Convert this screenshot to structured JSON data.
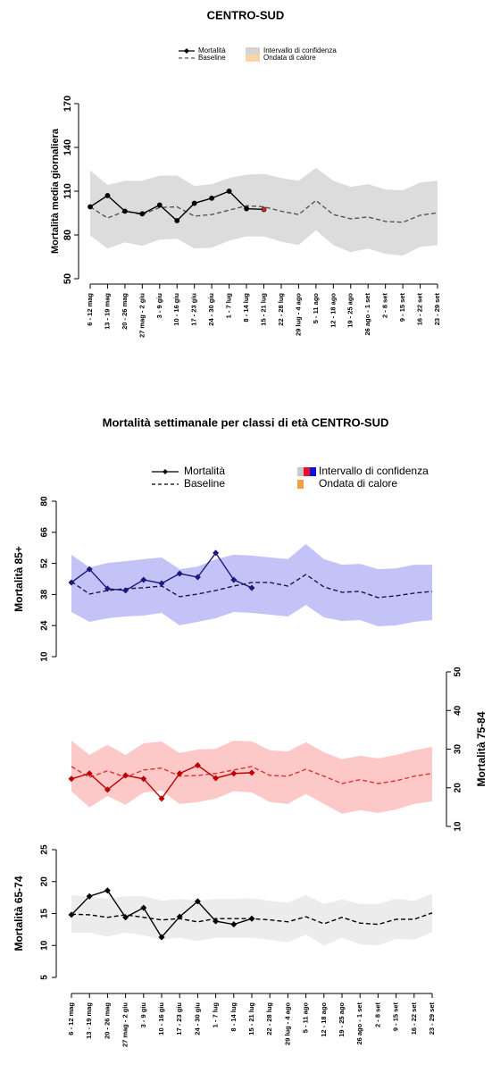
{
  "chart_data": [
    {
      "type": "line",
      "title": "CENTRO-SUD",
      "legend": [
        {
          "label": "Mortalità",
          "style": "solid",
          "colors": [
            "#000000"
          ]
        },
        {
          "label": "Baseline",
          "style": "dashed",
          "colors": [
            "#555555"
          ]
        },
        {
          "label": "Intervallo di confidenza",
          "style": "swatch",
          "colors": [
            "#d4d4d4"
          ]
        },
        {
          "label": "Ondata di calore",
          "style": "swatch",
          "colors": [
            "#fdd3a8"
          ]
        }
      ],
      "categories": [
        "6 - 12 mag",
        "13 - 19 mag",
        "20 - 26 mag",
        "27 mag - 2 giu",
        "3 - 9 giu",
        "10 - 16 giu",
        "17 - 23 giu",
        "24 - 30 giu",
        "1 - 7 lug",
        "8 - 14 lug",
        "15 - 21 lug",
        "22 - 28 lug",
        "29 lug - 4 ago",
        "5 - 11 ago",
        "12 - 18 ago",
        "19 - 25 ago",
        "26 ago - 1 set",
        "2 - 8 set",
        "9 - 15 set",
        "16 - 22 set",
        "23 - 29 set"
      ],
      "panels": [
        {
          "ylabel": "Mortalità media giornaliera",
          "ylim": [
            50,
            170
          ],
          "yticks": [
            50,
            80,
            110,
            140,
            170
          ],
          "line_color": "#000000",
          "baseline_color": "#555555",
          "band_color": "#dcdcdc",
          "marker": "circle",
          "marker_colors": [
            "#000000",
            "#000000",
            "#000000",
            "#000000",
            "#000000",
            "#000000",
            "#000000",
            "#000000",
            "#000000",
            "#000000",
            "#d62728"
          ],
          "values": [
            99.3,
            107,
            96.3,
            94.5,
            100.5,
            89.8,
            101.7,
            105.2,
            110,
            98,
            97.5,
            null,
            null,
            null,
            null,
            null,
            null,
            null,
            null,
            null,
            null
          ],
          "baseline": [
            99.3,
            91.6,
            96.3,
            94,
            98.8,
            99.3,
            92.9,
            94,
            97,
            100,
            99.3,
            96.3,
            94,
            103.6,
            94,
            91.1,
            92.3,
            89.3,
            88.7,
            93.5,
            95.2
          ],
          "upper": [
            124.3,
            114.2,
            117.1,
            117.1,
            120.7,
            120.7,
            113.6,
            114.8,
            119,
            121.3,
            121.9,
            119,
            117.1,
            126,
            117.1,
            113,
            114.8,
            111.2,
            110.6,
            116,
            117.1
          ],
          "lower": [
            79.6,
            70.7,
            74.9,
            72.6,
            76.8,
            77.4,
            70.7,
            71.3,
            76.1,
            79,
            79,
            75.4,
            73,
            83.3,
            73,
            68.3,
            70.7,
            67.1,
            65.9,
            71.9,
            73
          ]
        }
      ]
    },
    {
      "type": "line",
      "title": "Mortalità settimanale per classi di età CENTRO-SUD",
      "legend": [
        {
          "label": "Mortalità",
          "style": "solid",
          "colors": [
            "#000000"
          ]
        },
        {
          "label": "Baseline",
          "style": "dashed",
          "colors": [
            "#000000"
          ]
        },
        {
          "label": "Intervallo di confidenza",
          "style": "swatch",
          "colors": [
            "#c8c8c8",
            "#e8102a",
            "#1010e0"
          ]
        },
        {
          "label": "Ondata di calore",
          "style": "swatch",
          "colors": [
            "#f4a040"
          ]
        }
      ],
      "categories": [
        "6 - 12 mag",
        "13 - 19 mag",
        "20 - 26 mag",
        "27 mag - 2 giu",
        "3 - 9 giu",
        "10 - 16 giu",
        "17 - 23 giu",
        "24 - 30 giu",
        "1 - 7 lug",
        "8 - 14 lug",
        "15 - 21 lug",
        "22 - 28 lug",
        "29 lug - 4 ago",
        "5 - 11 ago",
        "12 - 18 ago",
        "19 - 25 ago",
        "26 ago - 1 set",
        "2 - 8 set",
        "9 - 15 set",
        "16 - 22 set",
        "23 - 29 set"
      ],
      "panels": [
        {
          "ylabel": "Mortalità 85+",
          "ylim": [
            10,
            80
          ],
          "yticks": [
            10,
            24,
            38,
            52,
            66,
            80
          ],
          "line_color": "#1a1a7a",
          "baseline_color": "#1a1a3a",
          "band_color": "#c3c3f7",
          "marker": "diamond",
          "values": [
            43.4,
            49.4,
            40.6,
            39.8,
            44.6,
            43,
            47.4,
            45.8,
            56.7,
            44.6,
            41,
            null,
            null,
            null,
            null,
            null,
            null,
            null,
            null,
            null,
            null
          ],
          "baseline": [
            43.8,
            38.2,
            39.8,
            40.6,
            41,
            41.8,
            37,
            38.2,
            39.8,
            41.8,
            43.4,
            43.4,
            41.8,
            47,
            41.4,
            39,
            39.4,
            36.6,
            37.4,
            38.6,
            39.4
          ],
          "upper": [
            55.9,
            50.2,
            52.2,
            53,
            53.9,
            54.7,
            49.4,
            50.6,
            53.9,
            55.9,
            55.5,
            54.7,
            53.9,
            60.7,
            53.9,
            51.4,
            51.8,
            49.4,
            49.8,
            51.4,
            51.4
          ],
          "lower": [
            30.1,
            25.7,
            27.3,
            28.1,
            28.5,
            29.7,
            24.1,
            25.7,
            27.3,
            30.1,
            29.7,
            28.9,
            28.1,
            33.3,
            27.7,
            26.1,
            26.5,
            23.7,
            24.1,
            25.7,
            26.5
          ]
        },
        {
          "ylabel": "Mortalità 75-84",
          "ylim": [
            10,
            50
          ],
          "yticks": [
            10,
            20,
            30,
            40,
            50
          ],
          "axis_side": "right",
          "line_color": "#c00000",
          "baseline_color": "#e03030",
          "band_color": "#fcc8c8",
          "marker": "diamond",
          "values": [
            22.3,
            23.7,
            19.5,
            23.2,
            22.3,
            17.2,
            23.7,
            25.8,
            22.5,
            23.7,
            23.9,
            null,
            null,
            null,
            null,
            null,
            null,
            null,
            null,
            null,
            null
          ],
          "baseline": [
            25.5,
            22.7,
            24.4,
            22.7,
            24.6,
            25.1,
            23,
            23.2,
            23.7,
            24.6,
            25.5,
            23.2,
            23,
            24.8,
            23,
            21.1,
            22.1,
            21.1,
            21.8,
            23,
            23.7
          ],
          "upper": [
            32.2,
            28.5,
            31.1,
            28.5,
            31.5,
            32,
            29,
            29.9,
            30.1,
            32.2,
            32,
            29.7,
            29.4,
            31.8,
            29.2,
            27.4,
            28.3,
            27.6,
            28.5,
            29.7,
            30.6
          ],
          "lower": [
            19.1,
            14.9,
            17.9,
            15.6,
            18.8,
            19.3,
            15.8,
            16.3,
            17.2,
            19.1,
            18.8,
            16.3,
            15.8,
            18.4,
            15.8,
            13.3,
            14.2,
            13.5,
            14.4,
            15.8,
            16.5
          ]
        },
        {
          "ylabel": "Mortalità 65-74",
          "ylim": [
            5,
            25
          ],
          "yticks": [
            5,
            10,
            15,
            20,
            25
          ],
          "line_color": "#000000",
          "baseline_color": "#000000",
          "band_color": "#ececec",
          "marker": "diamond",
          "values": [
            14.8,
            17.7,
            18.6,
            14.4,
            15.9,
            11.3,
            14.5,
            16.9,
            13.8,
            13.3,
            14.2,
            null,
            null,
            null,
            null,
            null,
            null,
            null,
            null,
            null,
            null
          ],
          "baseline": [
            14.9,
            14.8,
            14.4,
            14.8,
            14.4,
            14,
            14.2,
            13.7,
            14.2,
            14.2,
            14.2,
            14,
            13.7,
            14.5,
            13.4,
            14.4,
            13.5,
            13.3,
            14.1,
            14.1,
            15.1
          ],
          "upper": [
            17.9,
            17.6,
            17.3,
            17.7,
            17.7,
            17,
            17.3,
            17,
            17.3,
            17.3,
            17.4,
            17,
            16.7,
            17.9,
            16.5,
            17.2,
            16.5,
            16.5,
            17.3,
            17,
            18.1
          ],
          "lower": [
            12,
            12,
            11.4,
            12,
            11.6,
            10.9,
            11.2,
            10.7,
            11.2,
            11.2,
            11.2,
            10.9,
            10.5,
            11.7,
            10,
            11.2,
            10.2,
            10,
            11,
            10.9,
            12.1
          ]
        }
      ]
    }
  ]
}
